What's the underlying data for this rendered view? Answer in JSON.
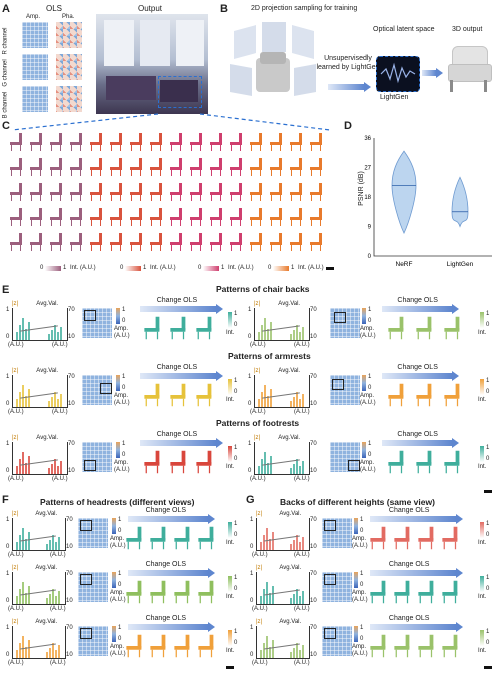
{
  "panels": {
    "A": "A",
    "B": "B",
    "C": "C",
    "D": "D",
    "E": "E",
    "F": "F",
    "G": "G"
  },
  "panelA": {
    "ols_title": "OLS",
    "amp": "Amp.",
    "pha": "Pha.",
    "output": "Output",
    "channels": [
      "R channel",
      "G channel",
      "B channel"
    ]
  },
  "panelB": {
    "sampling": "2D projection sampling for training",
    "latent": "Optical latent space",
    "output3d": "3D output",
    "learned": "Unsupervisedly learned by LightGen",
    "lightgen": "LightGen"
  },
  "panelC": {
    "int_label": "Int. (A.U.)",
    "cb0": "0",
    "cb1": "1",
    "colorbars": [
      "0 ▮ 1 Int. (A.U.)",
      "0 ▮ 1 Int. (A.U.)",
      "0 ▮ 1 Int. (A.U.)",
      "0 ▮ 1 Int. (A.U.)"
    ],
    "group_colors": [
      "#9c5f7d",
      "#d9533d",
      "#cf3f6e",
      "#e87a2c"
    ]
  },
  "panelD": {
    "ylabel": "PSNR (dB)",
    "yticks": [
      "36",
      "27",
      "18",
      "9",
      "0"
    ],
    "categories": [
      "NeRF",
      "LightGen"
    ]
  },
  "chart_data": {
    "type": "violin",
    "categories": [
      "NeRF",
      "LightGen"
    ],
    "ylabel": "PSNR (dB)",
    "ylim": [
      0,
      36
    ],
    "medians": [
      21.5,
      13.5
    ],
    "ranges": [
      [
        7,
        32
      ],
      [
        9,
        24
      ]
    ]
  },
  "common": {
    "z": "|z|",
    "avg": "Avg.Val.",
    "au": "(A.U.)",
    "amp": "Amp.",
    "int": "Int.",
    "change": "Change OLS",
    "one": "1",
    "zero": "0",
    "y10": "10",
    "y70": "70",
    "y0": "0",
    "y1": "1"
  },
  "panelE": {
    "titles": [
      "Patterns of chair backs",
      "Patterns of armrests",
      "Patterns of footrests"
    ]
  },
  "panelF": {
    "title": "Patterns of headrests (different views)"
  },
  "panelG": {
    "title": "Backs of different heights (same view)"
  }
}
